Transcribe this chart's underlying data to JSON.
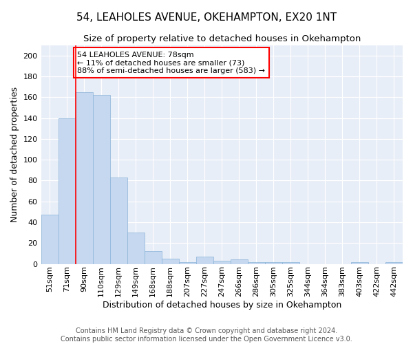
{
  "title": "54, LEAHOLES AVENUE, OKEHAMPTON, EX20 1NT",
  "subtitle": "Size of property relative to detached houses in Okehampton",
  "xlabel": "Distribution of detached houses by size in Okehampton",
  "ylabel": "Number of detached properties",
  "categories": [
    "51sqm",
    "71sqm",
    "90sqm",
    "110sqm",
    "129sqm",
    "149sqm",
    "168sqm",
    "188sqm",
    "207sqm",
    "227sqm",
    "247sqm",
    "266sqm",
    "286sqm",
    "305sqm",
    "325sqm",
    "344sqm",
    "364sqm",
    "383sqm",
    "403sqm",
    "422sqm",
    "442sqm"
  ],
  "values": [
    47,
    140,
    165,
    162,
    83,
    30,
    12,
    5,
    2,
    7,
    3,
    4,
    2,
    2,
    2,
    0,
    0,
    0,
    2,
    0,
    2
  ],
  "bar_color": "#c5d8f0",
  "bar_edge_color": "#8ab4d8",
  "red_line_index": 1.5,
  "annotation_text": "54 LEAHOLES AVENUE: 78sqm\n← 11% of detached houses are smaller (73)\n88% of semi-detached houses are larger (583) →",
  "annotation_box_color": "white",
  "annotation_box_edge_color": "red",
  "ylim": [
    0,
    210
  ],
  "yticks": [
    0,
    20,
    40,
    60,
    80,
    100,
    120,
    140,
    160,
    180,
    200
  ],
  "footer_line1": "Contains HM Land Registry data © Crown copyright and database right 2024.",
  "footer_line2": "Contains public sector information licensed under the Open Government Licence v3.0.",
  "bg_color": "#e8eef7",
  "title_fontsize": 11,
  "subtitle_fontsize": 9.5,
  "axis_label_fontsize": 9,
  "tick_fontsize": 8,
  "annotation_fontsize": 8,
  "footer_fontsize": 7
}
